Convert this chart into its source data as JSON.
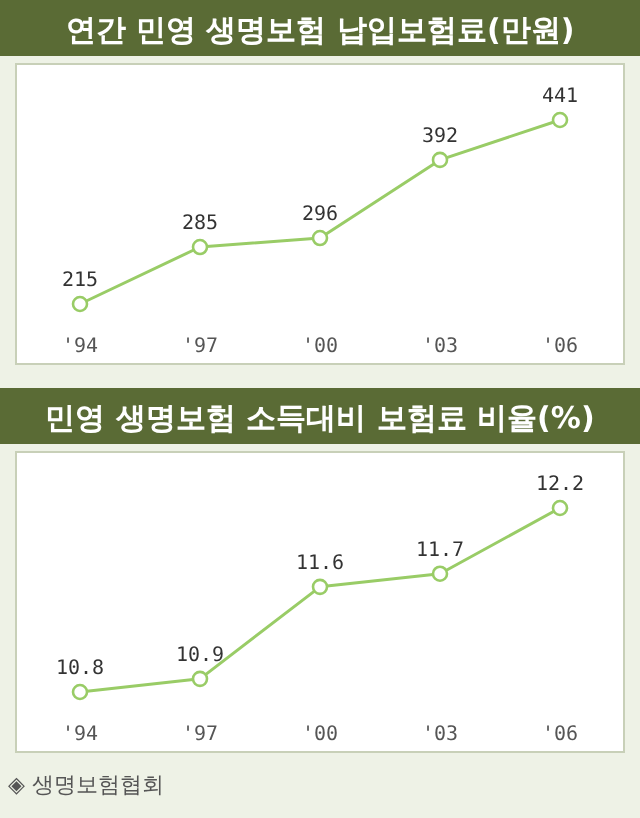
{
  "chart_data": [
    {
      "type": "line",
      "title": "연간 민영 생명보험 납입보험료(만원)",
      "categories": [
        "'94",
        "'97",
        "'00",
        "'03",
        "'06"
      ],
      "series": [
        {
          "color": "#99cc66",
          "values": [
            215,
            285,
            296,
            392,
            441
          ]
        }
      ],
      "data_labels": true,
      "marker": "circle",
      "line_style": "solid"
    },
    {
      "type": "line",
      "title": "민영 생명보험 소득대비 보험료 비율(%)",
      "categories": [
        "'94",
        "'97",
        "'00",
        "'03",
        "'06"
      ],
      "series": [
        {
          "color": "#99cc66",
          "values": [
            10.8,
            10.9,
            11.6,
            11.7,
            12.2
          ]
        }
      ],
      "data_labels": true,
      "marker": "circle",
      "line_style": "solid",
      "annotations": [
        "◈ 생명보험협회"
      ]
    }
  ]
}
